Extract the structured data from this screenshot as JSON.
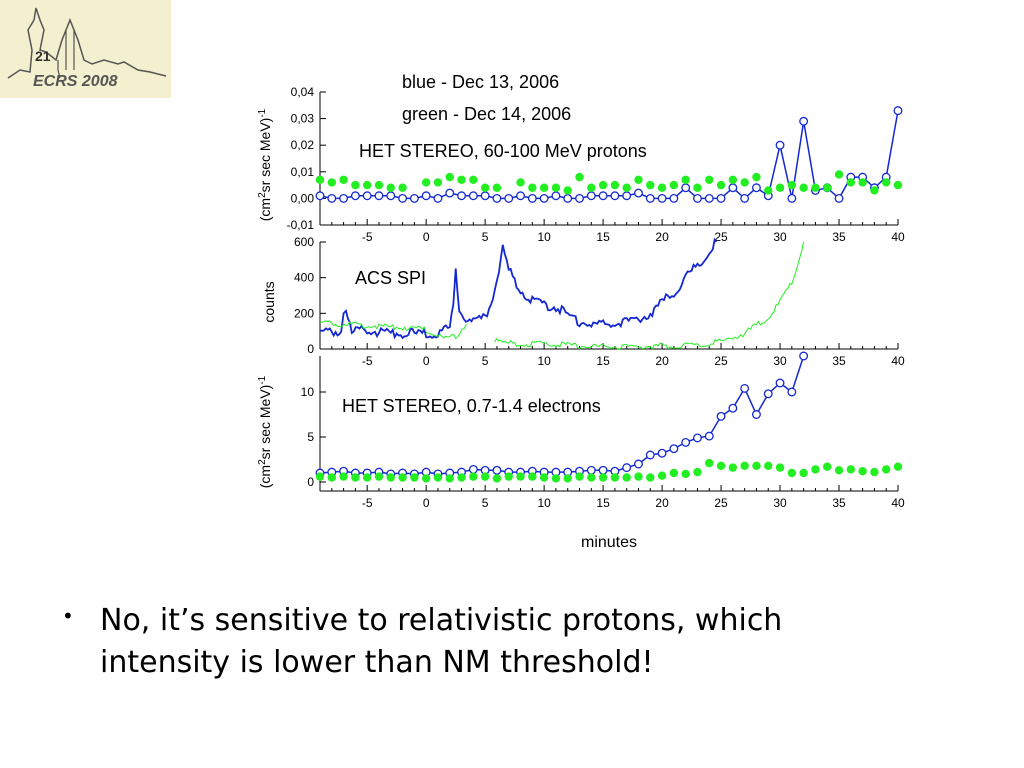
{
  "logo": {
    "number": "21",
    "name": "ECRS 2008"
  },
  "chart_data": [
    {
      "type": "scatter",
      "title": "HET STEREO, 60-100 MeV protons",
      "legend": [
        "blue - Dec 13, 2006",
        "green - Dec 14, 2006"
      ],
      "ylabel": "(cm2sr sec MeV)-1",
      "xlim": [
        -9,
        40
      ],
      "ylim": [
        -0.01,
        0.04
      ],
      "yticks": [
        "-0,01",
        "0,00",
        "0,01",
        "0,02",
        "0,03",
        "0,04"
      ],
      "xticks": [
        "-5",
        "0",
        "5",
        "10",
        "15",
        "20",
        "25",
        "30",
        "35",
        "40"
      ],
      "colors": {
        "blue": "#1428d2",
        "green": "#22ee22"
      },
      "x": [
        -9,
        -8,
        -7,
        -6,
        -5,
        -4,
        -3,
        -2,
        -1,
        0,
        1,
        2,
        3,
        4,
        5,
        6,
        7,
        8,
        9,
        10,
        11,
        12,
        13,
        14,
        15,
        16,
        17,
        18,
        19,
        20,
        21,
        22,
        23,
        24,
        25,
        26,
        27,
        28,
        29,
        30,
        31,
        32,
        33,
        34,
        35,
        36,
        37,
        38,
        39,
        40
      ],
      "series": [
        {
          "name": "blue - Dec 13, 2006",
          "values": [
            0.001,
            0.0,
            0.0,
            0.001,
            0.001,
            0.001,
            0.001,
            0.0,
            0.0,
            0.001,
            0.0,
            0.002,
            0.001,
            0.001,
            0.001,
            0.0,
            0.0,
            0.001,
            0.0,
            0.0,
            0.001,
            0.0,
            0.0,
            0.001,
            0.001,
            0.001,
            0.001,
            0.002,
            0.0,
            0.0,
            0.0,
            0.004,
            0.0,
            0.0,
            0.0,
            0.004,
            0.0,
            0.004,
            0.001,
            0.02,
            0.0,
            0.029,
            0.003,
            0.004,
            0.0,
            0.008,
            0.008,
            0.004,
            0.008,
            0.033
          ]
        },
        {
          "name": "green - Dec 14, 2006",
          "values": [
            0.007,
            0.006,
            0.007,
            0.005,
            0.005,
            0.005,
            0.004,
            0.004,
            null,
            0.006,
            0.006,
            0.008,
            0.007,
            0.007,
            0.004,
            0.004,
            null,
            0.006,
            0.004,
            0.004,
            0.004,
            0.003,
            0.008,
            0.004,
            0.005,
            0.005,
            0.004,
            0.007,
            0.005,
            0.004,
            0.005,
            0.007,
            0.004,
            0.007,
            0.005,
            0.007,
            0.006,
            0.008,
            0.003,
            0.004,
            0.005,
            0.004,
            0.004,
            0.004,
            0.009,
            0.006,
            0.006,
            0.003,
            0.006,
            0.005
          ]
        }
      ]
    },
    {
      "type": "line",
      "title": "ACS SPI",
      "ylabel": "counts",
      "xlim": [
        -9,
        40
      ],
      "ylim": [
        0,
        600
      ],
      "yticks": [
        "0",
        "200",
        "400",
        "600"
      ],
      "xticks": [
        "-5",
        "0",
        "5",
        "10",
        "15",
        "20",
        "25",
        "30",
        "35",
        "40"
      ],
      "colors": {
        "blue": "#1428d2",
        "green": "#22ee22"
      },
      "series": [
        {
          "name": "blue - Dec 13, 2006",
          "x": [
            -9,
            -8,
            -7.2,
            -6.8,
            -6.3,
            -5,
            -4,
            -3,
            -2,
            -1,
            0,
            1,
            2,
            2.3,
            2.5,
            2.8,
            3.2,
            4,
            5,
            5.5,
            6,
            6.5,
            7,
            8,
            9,
            10,
            11,
            12,
            13,
            14,
            15,
            16,
            17,
            18,
            19,
            20,
            21,
            22,
            23,
            24,
            24.6
          ],
          "values": [
            100,
            95,
            110,
            240,
            110,
            100,
            95,
            90,
            90,
            85,
            85,
            85,
            120,
            270,
            470,
            230,
            180,
            165,
            170,
            260,
            390,
            560,
            440,
            330,
            270,
            240,
            235,
            190,
            150,
            140,
            135,
            140,
            150,
            175,
            200,
            260,
            320,
            400,
            470,
            550,
            600
          ]
        },
        {
          "name": "green - Dec 14, 2006",
          "x": [
            -9,
            -8,
            -7,
            -5,
            -3,
            -1,
            0,
            1,
            1.5,
            2.5,
            3.4,
            null,
            5.8,
            7,
            9,
            11,
            13,
            15,
            17,
            19,
            21,
            23,
            25,
            27,
            28,
            29,
            30,
            31,
            31.5,
            32
          ],
          "values": [
            150,
            145,
            140,
            130,
            125,
            120,
            105,
            80,
            60,
            70,
            140,
            null,
            45,
            30,
            28,
            25,
            15,
            12,
            12,
            15,
            20,
            25,
            40,
            90,
            130,
            180,
            260,
            370,
            480,
            600
          ]
        }
      ]
    },
    {
      "type": "scatter",
      "title": "HET STEREO, 0.7-1.4 electrons",
      "ylabel": "(cm2sr sec MeV)-1",
      "xlabel": "minutes",
      "xlim": [
        -9,
        40
      ],
      "ylim": [
        -1,
        14
      ],
      "yticks": [
        "0",
        "5",
        "10"
      ],
      "xticks": [
        "-5",
        "0",
        "5",
        "10",
        "15",
        "20",
        "25",
        "30",
        "35",
        "40"
      ],
      "colors": {
        "blue": "#1428d2",
        "green": "#22ee22"
      },
      "x": [
        -9,
        -8,
        -7,
        -6,
        -5,
        -4,
        -3,
        -2,
        -1,
        0,
        1,
        2,
        3,
        4,
        5,
        6,
        7,
        8,
        9,
        10,
        11,
        12,
        13,
        14,
        15,
        16,
        17,
        18,
        19,
        20,
        21,
        22,
        23,
        24,
        25,
        26,
        27,
        28,
        29,
        30,
        31,
        32,
        33,
        34,
        35,
        36,
        37,
        38,
        39,
        40
      ],
      "series": [
        {
          "name": "blue - Dec 13, 2006",
          "values": [
            1.0,
            1.1,
            1.2,
            1.0,
            1.0,
            1.1,
            0.9,
            1.0,
            0.9,
            1.1,
            0.9,
            1.0,
            1.1,
            1.4,
            1.3,
            1.3,
            1.1,
            1.1,
            1.2,
            1.1,
            1.1,
            1.1,
            1.2,
            1.3,
            1.3,
            1.2,
            1.6,
            2.0,
            3.0,
            3.2,
            3.7,
            4.4,
            4.9,
            5.1,
            7.3,
            8.2,
            10.4,
            7.5,
            9.8,
            11.0,
            10.0,
            14.0,
            null,
            null,
            null,
            null,
            null,
            null,
            null,
            null
          ]
        },
        {
          "name": "green - Dec 14, 2006",
          "values": [
            0.6,
            0.5,
            0.6,
            0.5,
            0.5,
            0.6,
            0.5,
            0.5,
            0.5,
            0.4,
            0.5,
            0.4,
            0.5,
            0.6,
            0.6,
            0.4,
            0.6,
            0.6,
            0.6,
            0.5,
            0.4,
            0.4,
            0.6,
            0.5,
            0.5,
            0.5,
            0.5,
            0.6,
            0.5,
            0.7,
            1.0,
            0.9,
            1.1,
            2.1,
            1.8,
            1.6,
            1.8,
            1.8,
            1.8,
            1.6,
            1.0,
            1.0,
            1.4,
            1.7,
            1.3,
            1.4,
            1.2,
            1.1,
            1.4,
            1.7
          ]
        }
      ]
    }
  ],
  "bullet": {
    "dot": "•",
    "text": "No, it’s sensitive to relativistic protons, which intensity is lower than NM threshold!"
  }
}
